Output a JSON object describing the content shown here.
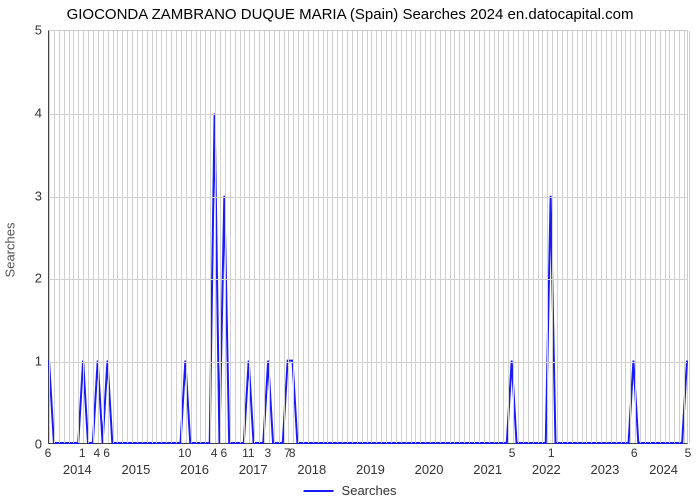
{
  "chart": {
    "type": "line",
    "title": "GIOCONDA ZAMBRANO DUQUE MARIA (Spain) Searches 2024 en.datocapital.com",
    "title_fontsize": 15,
    "y_axis_label": "Searches",
    "ylim": [
      0,
      5
    ],
    "yticks": [
      0,
      1,
      2,
      3,
      4,
      5
    ],
    "background_color": "#ffffff",
    "grid_color": "#d0d0d0",
    "axis_color": "#444444",
    "series_color": "#1a1aff",
    "line_width": 2,
    "legend_label": "Searches",
    "years": [
      "2014",
      "2015",
      "2016",
      "2017",
      "2018",
      "2019",
      "2020",
      "2021",
      "2022",
      "2023",
      "2024"
    ],
    "months_per_year": 12,
    "minor_tick_labels": [
      {
        "i": 0,
        "text": "6"
      },
      {
        "i": 7,
        "text": "1"
      },
      {
        "i": 10,
        "text": "4"
      },
      {
        "i": 12,
        "text": "6"
      },
      {
        "i": 28,
        "text": "10"
      },
      {
        "i": 34,
        "text": "4"
      },
      {
        "i": 36,
        "text": "6"
      },
      {
        "i": 41,
        "text": "11"
      },
      {
        "i": 45,
        "text": "3"
      },
      {
        "i": 49,
        "text": "7"
      },
      {
        "i": 50,
        "text": "8"
      },
      {
        "i": 95,
        "text": "5"
      },
      {
        "i": 103,
        "text": "1"
      },
      {
        "i": 120,
        "text": "6"
      },
      {
        "i": 131,
        "text": "5"
      }
    ],
    "data": [
      {
        "i": 0,
        "v": 1
      },
      {
        "i": 1,
        "v": 0
      },
      {
        "i": 2,
        "v": 0
      },
      {
        "i": 3,
        "v": 0
      },
      {
        "i": 4,
        "v": 0
      },
      {
        "i": 5,
        "v": 0
      },
      {
        "i": 6,
        "v": 0
      },
      {
        "i": 7,
        "v": 1
      },
      {
        "i": 8,
        "v": 0
      },
      {
        "i": 9,
        "v": 0
      },
      {
        "i": 10,
        "v": 1
      },
      {
        "i": 11,
        "v": 0
      },
      {
        "i": 12,
        "v": 1
      },
      {
        "i": 13,
        "v": 0
      },
      {
        "i": 14,
        "v": 0
      },
      {
        "i": 15,
        "v": 0
      },
      {
        "i": 16,
        "v": 0
      },
      {
        "i": 17,
        "v": 0
      },
      {
        "i": 18,
        "v": 0
      },
      {
        "i": 19,
        "v": 0
      },
      {
        "i": 20,
        "v": 0
      },
      {
        "i": 21,
        "v": 0
      },
      {
        "i": 22,
        "v": 0
      },
      {
        "i": 23,
        "v": 0
      },
      {
        "i": 24,
        "v": 0
      },
      {
        "i": 25,
        "v": 0
      },
      {
        "i": 26,
        "v": 0
      },
      {
        "i": 27,
        "v": 0
      },
      {
        "i": 28,
        "v": 1
      },
      {
        "i": 29,
        "v": 0
      },
      {
        "i": 30,
        "v": 0
      },
      {
        "i": 31,
        "v": 0
      },
      {
        "i": 32,
        "v": 0
      },
      {
        "i": 33,
        "v": 0
      },
      {
        "i": 34,
        "v": 4
      },
      {
        "i": 35,
        "v": 0
      },
      {
        "i": 36,
        "v": 3
      },
      {
        "i": 37,
        "v": 0
      },
      {
        "i": 38,
        "v": 0
      },
      {
        "i": 39,
        "v": 0
      },
      {
        "i": 40,
        "v": 0
      },
      {
        "i": 41,
        "v": 1
      },
      {
        "i": 42,
        "v": 0
      },
      {
        "i": 43,
        "v": 0
      },
      {
        "i": 44,
        "v": 0
      },
      {
        "i": 45,
        "v": 1
      },
      {
        "i": 46,
        "v": 0
      },
      {
        "i": 47,
        "v": 0
      },
      {
        "i": 48,
        "v": 0
      },
      {
        "i": 49,
        "v": 1
      },
      {
        "i": 50,
        "v": 1
      },
      {
        "i": 51,
        "v": 0
      },
      {
        "i": 52,
        "v": 0
      },
      {
        "i": 53,
        "v": 0
      },
      {
        "i": 54,
        "v": 0
      },
      {
        "i": 55,
        "v": 0
      },
      {
        "i": 56,
        "v": 0
      },
      {
        "i": 57,
        "v": 0
      },
      {
        "i": 58,
        "v": 0
      },
      {
        "i": 59,
        "v": 0
      },
      {
        "i": 60,
        "v": 0
      },
      {
        "i": 61,
        "v": 0
      },
      {
        "i": 62,
        "v": 0
      },
      {
        "i": 63,
        "v": 0
      },
      {
        "i": 64,
        "v": 0
      },
      {
        "i": 65,
        "v": 0
      },
      {
        "i": 66,
        "v": 0
      },
      {
        "i": 67,
        "v": 0
      },
      {
        "i": 68,
        "v": 0
      },
      {
        "i": 69,
        "v": 0
      },
      {
        "i": 70,
        "v": 0
      },
      {
        "i": 71,
        "v": 0
      },
      {
        "i": 72,
        "v": 0
      },
      {
        "i": 73,
        "v": 0
      },
      {
        "i": 74,
        "v": 0
      },
      {
        "i": 75,
        "v": 0
      },
      {
        "i": 76,
        "v": 0
      },
      {
        "i": 77,
        "v": 0
      },
      {
        "i": 78,
        "v": 0
      },
      {
        "i": 79,
        "v": 0
      },
      {
        "i": 80,
        "v": 0
      },
      {
        "i": 81,
        "v": 0
      },
      {
        "i": 82,
        "v": 0
      },
      {
        "i": 83,
        "v": 0
      },
      {
        "i": 84,
        "v": 0
      },
      {
        "i": 85,
        "v": 0
      },
      {
        "i": 86,
        "v": 0
      },
      {
        "i": 87,
        "v": 0
      },
      {
        "i": 88,
        "v": 0
      },
      {
        "i": 89,
        "v": 0
      },
      {
        "i": 90,
        "v": 0
      },
      {
        "i": 91,
        "v": 0
      },
      {
        "i": 92,
        "v": 0
      },
      {
        "i": 93,
        "v": 0
      },
      {
        "i": 94,
        "v": 0
      },
      {
        "i": 95,
        "v": 1
      },
      {
        "i": 96,
        "v": 0
      },
      {
        "i": 97,
        "v": 0
      },
      {
        "i": 98,
        "v": 0
      },
      {
        "i": 99,
        "v": 0
      },
      {
        "i": 100,
        "v": 0
      },
      {
        "i": 101,
        "v": 0
      },
      {
        "i": 102,
        "v": 0
      },
      {
        "i": 103,
        "v": 3
      },
      {
        "i": 104,
        "v": 0
      },
      {
        "i": 105,
        "v": 0
      },
      {
        "i": 106,
        "v": 0
      },
      {
        "i": 107,
        "v": 0
      },
      {
        "i": 108,
        "v": 0
      },
      {
        "i": 109,
        "v": 0
      },
      {
        "i": 110,
        "v": 0
      },
      {
        "i": 111,
        "v": 0
      },
      {
        "i": 112,
        "v": 0
      },
      {
        "i": 113,
        "v": 0
      },
      {
        "i": 114,
        "v": 0
      },
      {
        "i": 115,
        "v": 0
      },
      {
        "i": 116,
        "v": 0
      },
      {
        "i": 117,
        "v": 0
      },
      {
        "i": 118,
        "v": 0
      },
      {
        "i": 119,
        "v": 0
      },
      {
        "i": 120,
        "v": 1
      },
      {
        "i": 121,
        "v": 0
      },
      {
        "i": 122,
        "v": 0
      },
      {
        "i": 123,
        "v": 0
      },
      {
        "i": 124,
        "v": 0
      },
      {
        "i": 125,
        "v": 0
      },
      {
        "i": 126,
        "v": 0
      },
      {
        "i": 127,
        "v": 0
      },
      {
        "i": 128,
        "v": 0
      },
      {
        "i": 129,
        "v": 0
      },
      {
        "i": 130,
        "v": 0
      },
      {
        "i": 131,
        "v": 1
      }
    ]
  }
}
